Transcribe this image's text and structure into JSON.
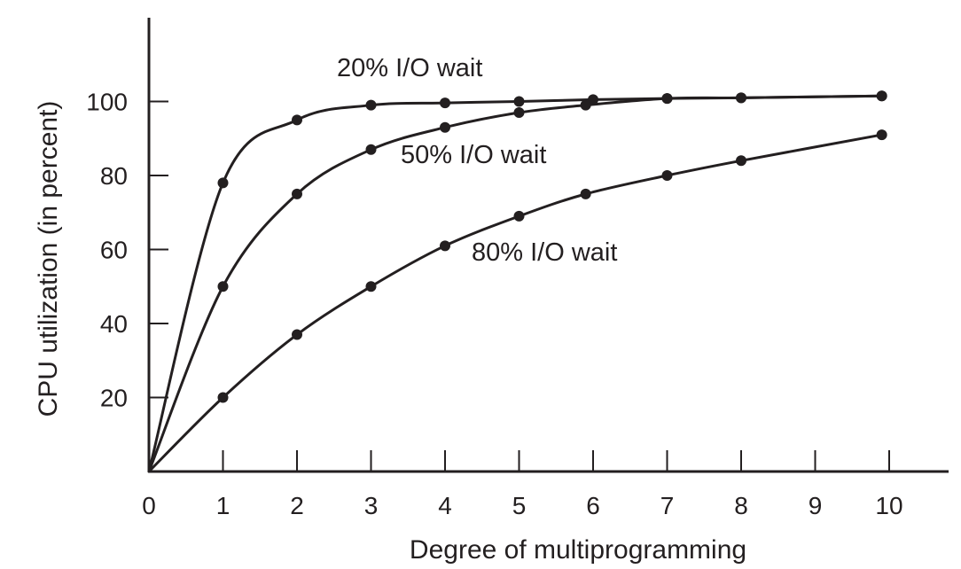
{
  "chart_data": {
    "type": "line",
    "title": "",
    "xlabel": "Degree of multiprogramming",
    "ylabel": "CPU utilization (in percent)",
    "xlim": [
      0,
      10
    ],
    "ylim": [
      0,
      100
    ],
    "x_ticks": [
      0,
      1,
      2,
      3,
      4,
      5,
      6,
      7,
      8,
      9,
      10
    ],
    "y_ticks": [
      20,
      40,
      60,
      80,
      100
    ],
    "grid": false,
    "legend": "none",
    "series": [
      {
        "name": "20% I/O wait",
        "x": [
          0,
          1,
          2,
          3,
          4,
          5,
          6,
          7,
          8,
          9.9
        ],
        "y": [
          0,
          78,
          95,
          99,
          99.6,
          100,
          100.5,
          100.8,
          101,
          101.5
        ]
      },
      {
        "name": "50% I/O wait",
        "x": [
          0,
          1,
          2,
          3,
          4,
          5,
          5.9,
          7,
          8,
          9.9
        ],
        "y": [
          0,
          50,
          75,
          87,
          93,
          97,
          99,
          100.8,
          101,
          101.5
        ]
      },
      {
        "name": "80% I/O wait",
        "x": [
          0,
          1,
          2,
          3,
          4,
          5,
          5.9,
          7,
          8,
          9.9
        ],
        "y": [
          0,
          20,
          37,
          50,
          61,
          69,
          75,
          80,
          84,
          91
        ]
      }
    ]
  }
}
